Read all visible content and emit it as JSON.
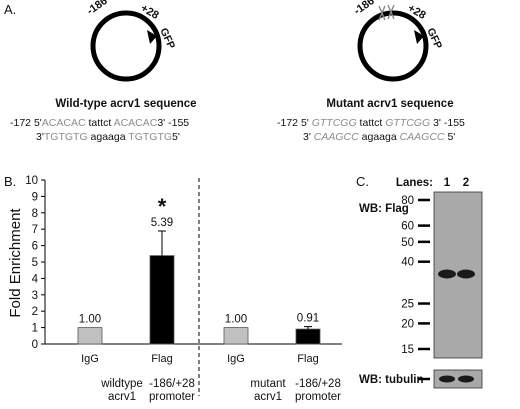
{
  "panel_a": {
    "label": "A.",
    "wild_type": {
      "left_label": "-186",
      "right_label": "+28",
      "reporter": "GFP",
      "title": "Wild-type acrv1 sequence",
      "line1": {
        "start": "-172",
        "p5": "5'",
        "seg1": "ACACAC",
        "mid": " tattct ",
        "seg2": "ACACAC",
        "p3": "3'",
        "end": "-155"
      },
      "line2": {
        "p3": "3'",
        "seg1": "TGTGTG",
        "mid": " agaaga ",
        "seg2": "TGTGTG",
        "p5": "5'"
      }
    },
    "mutant": {
      "left_label": "-186",
      "right_label": "+28",
      "reporter": "GFP",
      "title": "Mutant acrv1 sequence",
      "line1": {
        "start": "-172",
        "p5": "5'",
        "seg1": "GTTCGG",
        "mid": " tattct ",
        "seg2": "GTTCGG",
        "p3": "3'",
        "end": "-155"
      },
      "line2": {
        "p3": "3'",
        "seg1": "CAAGCC",
        "mid": " agaaga ",
        "seg2": "CAAGCC",
        "p5": "5'"
      }
    }
  },
  "chart_data": {
    "panel_label": "B.",
    "type": "bar",
    "ylabel": "Fold Enrichment",
    "ylim": [
      0,
      10
    ],
    "yticks": [
      0,
      1,
      2,
      3,
      4,
      5,
      6,
      7,
      8,
      9,
      10
    ],
    "groups": [
      {
        "name": "wildtype acrv1",
        "name_line2": "promoter",
        "promoter_label": "-186/+28",
        "bars": [
          {
            "category": "IgG",
            "value": 1.0,
            "label": "1.00",
            "color": "#c0c0c0",
            "error": 0
          },
          {
            "category": "Flag",
            "value": 5.39,
            "label": "5.39",
            "color": "#000000",
            "error": 1.5,
            "significance": "*"
          }
        ]
      },
      {
        "name": "mutant acrv1",
        "name_line2": "promoter",
        "promoter_label": "-186/+28",
        "bars": [
          {
            "category": "IgG",
            "value": 1.0,
            "label": "1.00",
            "color": "#c0c0c0",
            "error": 0
          },
          {
            "category": "Flag",
            "value": 0.91,
            "label": "0.91",
            "color": "#000000",
            "error": 0.15
          }
        ]
      }
    ],
    "group_divider": "dashed"
  },
  "panel_c": {
    "label": "C.",
    "lanes_label": "Lanes:",
    "lanes": [
      "1",
      "2"
    ],
    "wb_top": "WB: Flag",
    "wb_bottom": "WB: tubulin",
    "markers": [
      80,
      60,
      50,
      40,
      25,
      20,
      15
    ]
  }
}
